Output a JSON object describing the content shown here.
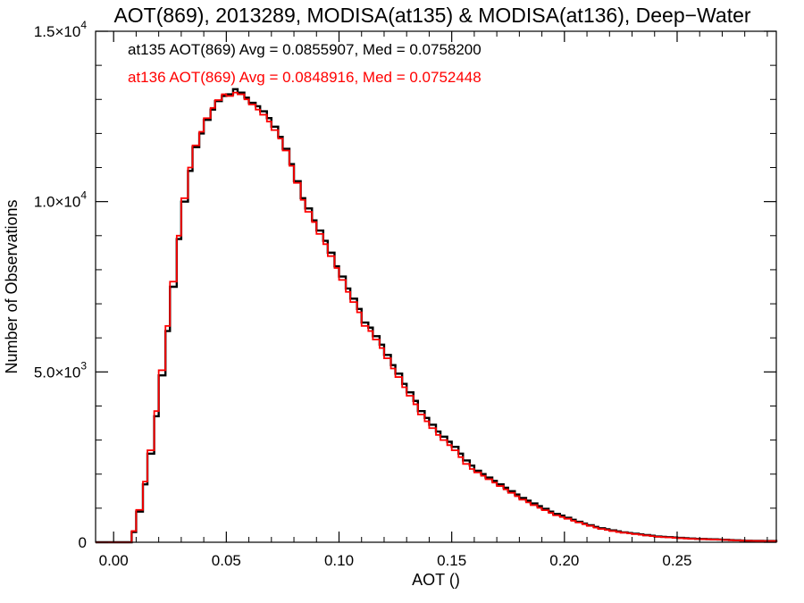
{
  "chart_data": {
    "type": "line",
    "title": "AOT(869), 2013289, MODISA(at135) & MODISA(at136), Deep−Water",
    "xlabel": "AOT ()",
    "ylabel": "Number of Observations",
    "xlim": [
      -0.008,
      0.294
    ],
    "ylim": [
      0,
      15000
    ],
    "x_ticks": [
      {
        "value": 0.0,
        "label": "0.00"
      },
      {
        "value": 0.05,
        "label": "0.05"
      },
      {
        "value": 0.1,
        "label": "0.10"
      },
      {
        "value": 0.15,
        "label": "0.15"
      },
      {
        "value": 0.2,
        "label": "0.20"
      },
      {
        "value": 0.25,
        "label": "0.25"
      }
    ],
    "y_ticks": [
      {
        "value": 0,
        "mantissa": "0",
        "exponent": ""
      },
      {
        "value": 5000,
        "mantissa": "5.0×10",
        "exponent": "3"
      },
      {
        "value": 10000,
        "mantissa": "1.0×10",
        "exponent": "4"
      },
      {
        "value": 15000,
        "mantissa": "1.5×10",
        "exponent": "4"
      }
    ],
    "step_style": "histogram",
    "grid": false,
    "legend_position": "top-left",
    "series": [
      {
        "stats_label": "at135 AOT(869) Avg = 0.0855907, Med = 0.0758200",
        "color": "#000000",
        "x": [
          -0.008,
          0.0,
          0.003,
          0.005,
          0.008,
          0.01,
          0.013,
          0.015,
          0.018,
          0.02,
          0.023,
          0.025,
          0.028,
          0.03,
          0.033,
          0.035,
          0.038,
          0.04,
          0.043,
          0.045,
          0.048,
          0.05,
          0.053,
          0.055,
          0.058,
          0.06,
          0.063,
          0.065,
          0.068,
          0.07,
          0.073,
          0.075,
          0.078,
          0.08,
          0.083,
          0.085,
          0.088,
          0.09,
          0.093,
          0.095,
          0.098,
          0.1,
          0.103,
          0.105,
          0.108,
          0.11,
          0.113,
          0.115,
          0.118,
          0.12,
          0.123,
          0.125,
          0.128,
          0.13,
          0.133,
          0.135,
          0.138,
          0.14,
          0.143,
          0.145,
          0.148,
          0.15,
          0.153,
          0.155,
          0.158,
          0.16,
          0.163,
          0.165,
          0.168,
          0.17,
          0.173,
          0.175,
          0.178,
          0.18,
          0.183,
          0.185,
          0.188,
          0.19,
          0.193,
          0.195,
          0.198,
          0.2,
          0.203,
          0.205,
          0.208,
          0.21,
          0.213,
          0.215,
          0.218,
          0.22,
          0.223,
          0.225,
          0.228,
          0.23,
          0.233,
          0.235,
          0.238,
          0.24,
          0.243,
          0.245,
          0.248,
          0.25,
          0.253,
          0.255,
          0.258,
          0.26,
          0.263,
          0.265,
          0.268,
          0.27,
          0.273,
          0.275,
          0.278,
          0.28,
          0.283,
          0.285,
          0.288,
          0.29,
          0.294
        ],
        "y": [
          0,
          0,
          0,
          0,
          300,
          900,
          1700,
          2600,
          3700,
          4900,
          6200,
          7500,
          8900,
          10000,
          10900,
          11600,
          12000,
          12400,
          12700,
          12950,
          13100,
          13150,
          13300,
          13200,
          13050,
          12900,
          12800,
          12650,
          12450,
          12200,
          11900,
          11550,
          11100,
          10600,
          10100,
          9800,
          9450,
          9150,
          8850,
          8500,
          8100,
          7800,
          7450,
          7150,
          6850,
          6450,
          6300,
          6050,
          5800,
          5500,
          5200,
          4950,
          4650,
          4400,
          4150,
          3850,
          3650,
          3450,
          3250,
          3100,
          2950,
          2800,
          2600,
          2400,
          2250,
          2100,
          2000,
          1900,
          1800,
          1700,
          1600,
          1500,
          1400,
          1300,
          1220,
          1140,
          1060,
          980,
          900,
          830,
          780,
          720,
          660,
          600,
          550,
          500,
          450,
          410,
          380,
          350,
          320,
          290,
          270,
          250,
          230,
          210,
          190,
          170,
          160,
          150,
          140,
          130,
          120,
          110,
          100,
          95,
          90,
          85,
          80,
          72,
          64,
          56,
          50,
          45,
          42,
          40,
          38,
          36,
          0
        ]
      },
      {
        "stats_label": "at136 AOT(869) Avg = 0.0848916, Med = 0.0752448",
        "color": "#ff0000",
        "x": [
          -0.008,
          0.0,
          0.003,
          0.005,
          0.008,
          0.01,
          0.013,
          0.015,
          0.018,
          0.02,
          0.023,
          0.025,
          0.028,
          0.03,
          0.033,
          0.035,
          0.038,
          0.04,
          0.043,
          0.045,
          0.048,
          0.05,
          0.053,
          0.055,
          0.058,
          0.06,
          0.063,
          0.065,
          0.068,
          0.07,
          0.073,
          0.075,
          0.078,
          0.08,
          0.083,
          0.085,
          0.088,
          0.09,
          0.093,
          0.095,
          0.098,
          0.1,
          0.103,
          0.105,
          0.108,
          0.11,
          0.113,
          0.115,
          0.118,
          0.12,
          0.123,
          0.125,
          0.128,
          0.13,
          0.133,
          0.135,
          0.138,
          0.14,
          0.143,
          0.145,
          0.148,
          0.15,
          0.153,
          0.155,
          0.158,
          0.16,
          0.163,
          0.165,
          0.168,
          0.17,
          0.173,
          0.175,
          0.178,
          0.18,
          0.183,
          0.185,
          0.188,
          0.19,
          0.193,
          0.195,
          0.198,
          0.2,
          0.203,
          0.205,
          0.208,
          0.21,
          0.213,
          0.215,
          0.218,
          0.22,
          0.223,
          0.225,
          0.228,
          0.23,
          0.233,
          0.235,
          0.238,
          0.24,
          0.243,
          0.245,
          0.248,
          0.25,
          0.253,
          0.255,
          0.258,
          0.26,
          0.263,
          0.265,
          0.268,
          0.27,
          0.273,
          0.275,
          0.278,
          0.28,
          0.283,
          0.285,
          0.288,
          0.29,
          0.294
        ],
        "y": [
          0,
          0,
          0,
          0,
          330,
          950,
          1780,
          2700,
          3850,
          5050,
          6350,
          7650,
          9000,
          10100,
          11000,
          11650,
          12050,
          12450,
          12750,
          12980,
          13150,
          13100,
          13200,
          13150,
          13000,
          12850,
          12700,
          12550,
          12350,
          12100,
          11850,
          11500,
          11050,
          10550,
          10050,
          9700,
          9400,
          9050,
          8750,
          8400,
          8050,
          7700,
          7350,
          7050,
          6750,
          6350,
          6200,
          5950,
          5700,
          5400,
          5100,
          4850,
          4550,
          4300,
          4050,
          3750,
          3550,
          3350,
          3150,
          3000,
          2850,
          2700,
          2500,
          2300,
          2150,
          2050,
          1950,
          1850,
          1750,
          1650,
          1550,
          1450,
          1350,
          1250,
          1170,
          1090,
          1010,
          940,
          860,
          790,
          740,
          690,
          630,
          580,
          530,
          480,
          430,
          390,
          360,
          330,
          300,
          280,
          260,
          240,
          220,
          200,
          180,
          160,
          150,
          140,
          130,
          120,
          110,
          100,
          95,
          90,
          85,
          80,
          76,
          68,
          60,
          53,
          48,
          43,
          40,
          38,
          36,
          34,
          0
        ]
      }
    ]
  }
}
